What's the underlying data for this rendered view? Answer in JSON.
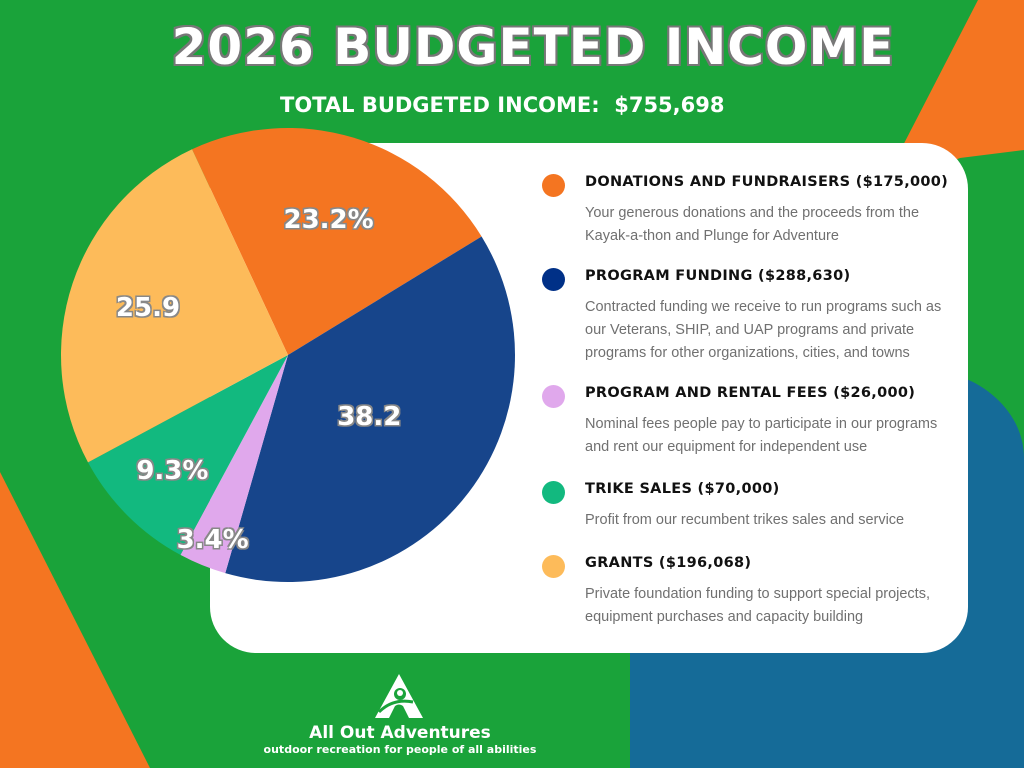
{
  "header": {
    "title": "2026 BUDGETED INCOME",
    "subtitle": "TOTAL BUDGETED INCOME:  $755,698"
  },
  "colors": {
    "background": "#1aa33a",
    "accent_orange": "#f47521",
    "accent_blue": "#156b98"
  },
  "chart_data": {
    "type": "pie",
    "start_angle_deg": -25,
    "direction": "clockwise",
    "slices": [
      {
        "name": "DONATIONS AND FUNDRAISERS",
        "value": 23.2,
        "label": "23.2%",
        "color": "#f47521"
      },
      {
        "name": "PROGRAM FUNDING",
        "value": 38.2,
        "label": "38.2",
        "color": "#17458b"
      },
      {
        "name": "PROGRAM AND RENTAL FEES",
        "value": 3.4,
        "label": "3.4%",
        "color": "#e0a8ec"
      },
      {
        "name": "TRIKE SALES",
        "value": 9.3,
        "label": "9.3%",
        "color": "#12b97f"
      },
      {
        "name": "GRANTS",
        "value": 25.9,
        "label": "25.9",
        "color": "#fdbb5a"
      }
    ]
  },
  "legend": [
    {
      "title": "DONATIONS AND FUNDRAISERS ($175,000)",
      "description": "Your generous donations and the proceeds from the Kayak-a-thon and Plunge for Adventure",
      "color": "#f47521"
    },
    {
      "title": "PROGRAM FUNDING ($288,630)",
      "description": "Contracted funding we receive to run programs such as our Veterans, SHIP, and UAP programs and private programs for other organizations, cities, and towns",
      "color": "#003087"
    },
    {
      "title": "PROGRAM AND RENTAL FEES ($26,000)",
      "description": "Nominal fees people pay to participate in our programs and rent our equipment for independent use",
      "color": "#e0a8ec"
    },
    {
      "title": "TRIKE SALES ($70,000)",
      "description": "Profit from our recumbent trikes sales and service",
      "color": "#12b97f"
    },
    {
      "title": "GRANTS ($196,068)",
      "description": "Private foundation funding to support special projects, equipment purchases and capacity building",
      "color": "#fdbb5a"
    }
  ],
  "footer": {
    "logo_icon": "all-out-adventures-a-logo",
    "brand": "All Out Adventures",
    "tagline": "outdoor recreation for people of all abilities"
  }
}
